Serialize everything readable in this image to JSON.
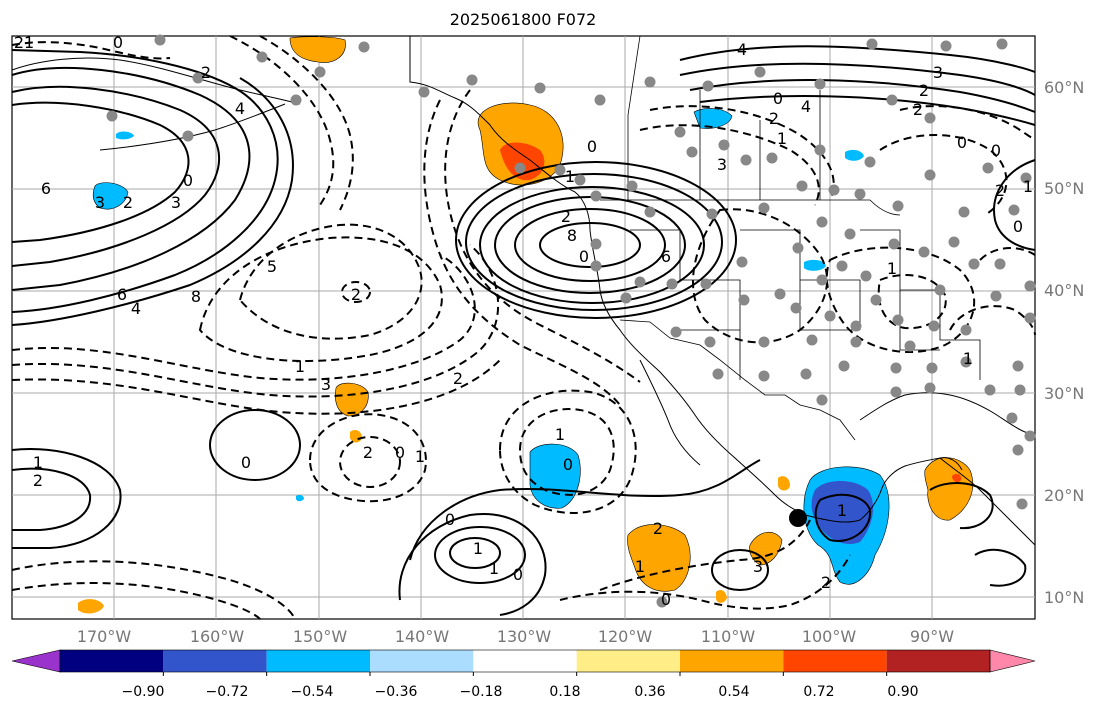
{
  "title": "2025061800 F072",
  "longitude_labels": [
    "170°W",
    "160°W",
    "150°W",
    "140°W",
    "130°W",
    "120°W",
    "110°W",
    "100°W",
    "90°W"
  ],
  "latitude_labels": [
    "60°N",
    "50°N",
    "40°N",
    "30°N",
    "20°N",
    "10°N"
  ],
  "colorbar": {
    "tick_labels": [
      "−0.90",
      "−0.72",
      "−0.54",
      "−0.36",
      "−0.18",
      "0.18",
      "0.36",
      "0.54",
      "0.72",
      "0.90"
    ],
    "colors": [
      "#9933cc",
      "#000080",
      "#3355cc",
      "#00bbff",
      "#aaddff",
      "#ffffff",
      "#ffee88",
      "#ffa500",
      "#ff4500",
      "#b22222",
      "#ff88aa"
    ]
  },
  "contour_labels": [
    "21",
    "0",
    "2",
    "4",
    "6",
    "3",
    "2",
    "0",
    "3",
    "6",
    "4",
    "8",
    "5",
    "2",
    "1",
    "3",
    "2",
    "0",
    "1",
    "2",
    "0",
    "6",
    "8",
    "4",
    "3",
    "2",
    "2",
    "0",
    "4",
    "2",
    "3",
    "1",
    "0",
    "0",
    "1",
    "2",
    "1",
    "0",
    "1",
    "0",
    "1",
    "2",
    "2",
    "0",
    "1",
    "1",
    "0",
    "2",
    "1",
    "1",
    "1",
    "0",
    "0",
    "0",
    "2",
    "1",
    "3"
  ],
  "colors": {
    "land": "#000000",
    "grid": "#aaaaaa",
    "marker": "#888888",
    "track_point": "#000000"
  }
}
